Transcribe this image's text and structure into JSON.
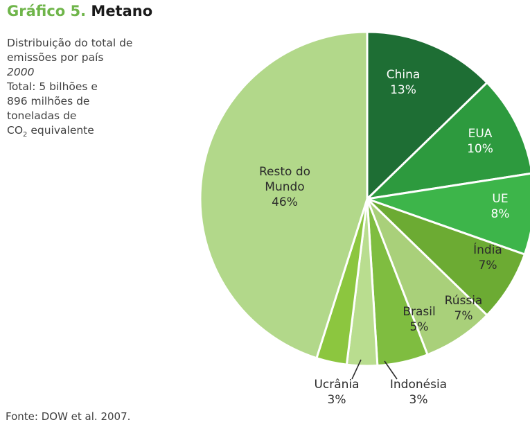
{
  "figure": {
    "number": "Gráfico 5.",
    "name": "Metano"
  },
  "description": {
    "lines": [
      "Distribuição do total de",
      "emissões por país"
    ],
    "year": "2000",
    "total_lines": [
      "Total: 5 bilhões e",
      "896 milhões de",
      "toneladas de"
    ],
    "co2_prefix": "CO",
    "co2_sub": "2",
    "co2_suffix": " equivalente"
  },
  "source": "Fonte: DOW et al. 2007.",
  "chart_data": {
    "type": "pie",
    "unit": "%",
    "start": "top, clockwise",
    "slices": [
      {
        "label": "China",
        "value": 13,
        "color": "#1e6e34",
        "label_color": "#ffffff"
      },
      {
        "label": "EUA",
        "value": 10,
        "color": "#2d9a3e",
        "label_color": "#ffffff"
      },
      {
        "label": "UE",
        "value": 8,
        "color": "#3db54a",
        "label_color": "#ffffff"
      },
      {
        "label": "Índia",
        "value": 7,
        "color": "#6cab33",
        "label_color": "#2b2b2b"
      },
      {
        "label": "Rússia",
        "value": 7,
        "color": "#a9d07a",
        "label_color": "#2b2b2b"
      },
      {
        "label": "Brasil",
        "value": 5,
        "color": "#7fbd40",
        "label_color": "#2b2b2b"
      },
      {
        "label": "Indonésia",
        "value": 3,
        "color": "#b9dd8f",
        "label_color": "#2b2b2b"
      },
      {
        "label": "Ucrânia",
        "value": 3,
        "color": "#8cc63f",
        "label_color": "#2b2b2b"
      },
      {
        "label": "Resto do Mundo",
        "value": 46,
        "color": "#b2d88a",
        "label_color": "#2b2b2b"
      }
    ]
  }
}
